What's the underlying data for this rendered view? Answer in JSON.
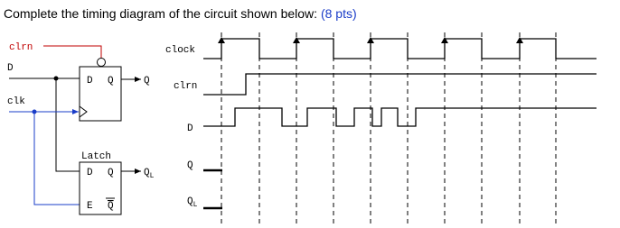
{
  "header": {
    "title": "Complete the timing diagram of the circuit shown below:",
    "points": "(8 pts)"
  },
  "circuit": {
    "clrn": "clrn",
    "d_input": "D",
    "clk": "clk",
    "flipflop": {
      "d": "D",
      "q": "Q",
      "output": "Q"
    },
    "latch": {
      "label": "Latch",
      "d": "D",
      "q": "Q",
      "e": "E",
      "qbar": "Q",
      "output": {
        "base": "Q",
        "sub": "L"
      }
    }
  },
  "timing": {
    "clock": "clock",
    "clrn": "clrn",
    "d": "D",
    "q": "Q",
    "ql": {
      "base": "Q",
      "sub": "L"
    }
  }
}
